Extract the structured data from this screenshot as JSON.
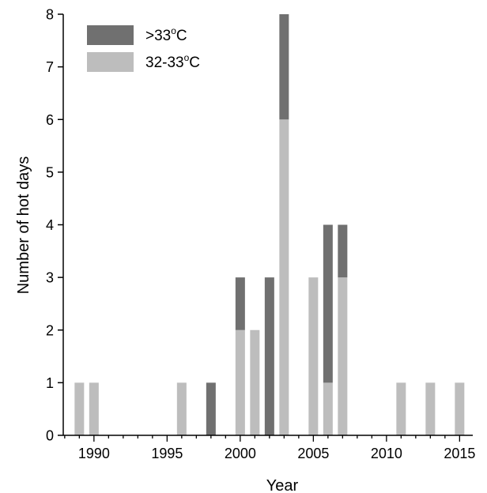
{
  "chart_data": {
    "type": "bar",
    "stacked": true,
    "xlabel": "Year",
    "ylabel": "Number of hot days",
    "xlim": [
      1987.9,
      2015.9
    ],
    "ylim": [
      0,
      8
    ],
    "xticks": [
      1990,
      1995,
      2000,
      2005,
      2010,
      2015
    ],
    "yticks": [
      0,
      1,
      2,
      3,
      4,
      5,
      6,
      7,
      8
    ],
    "x": [
      1989,
      1990,
      1996,
      1998,
      2000,
      2001,
      2002,
      2003,
      2005,
      2006,
      2007,
      2011,
      2013,
      2015
    ],
    "series": [
      {
        "name": "32-33°C",
        "color": "#bdbdbd",
        "values": [
          1,
          1,
          1,
          0,
          2,
          2,
          0,
          6,
          3,
          1,
          3,
          1,
          1,
          1
        ]
      },
      {
        "name": ">33°C",
        "color": "#707070",
        "values": [
          0,
          0,
          0,
          1,
          1,
          0,
          3,
          2,
          0,
          3,
          1,
          0,
          0,
          0
        ]
      }
    ],
    "legend": {
      "position": "top-left",
      "entries": [
        {
          "label_main": ">33",
          "label_sup": "o",
          "label_end": "C",
          "color": "#707070"
        },
        {
          "label_main": "32-33",
          "label_sup": "o",
          "label_end": "C",
          "color": "#bdbdbd"
        }
      ]
    },
    "grid": false
  }
}
